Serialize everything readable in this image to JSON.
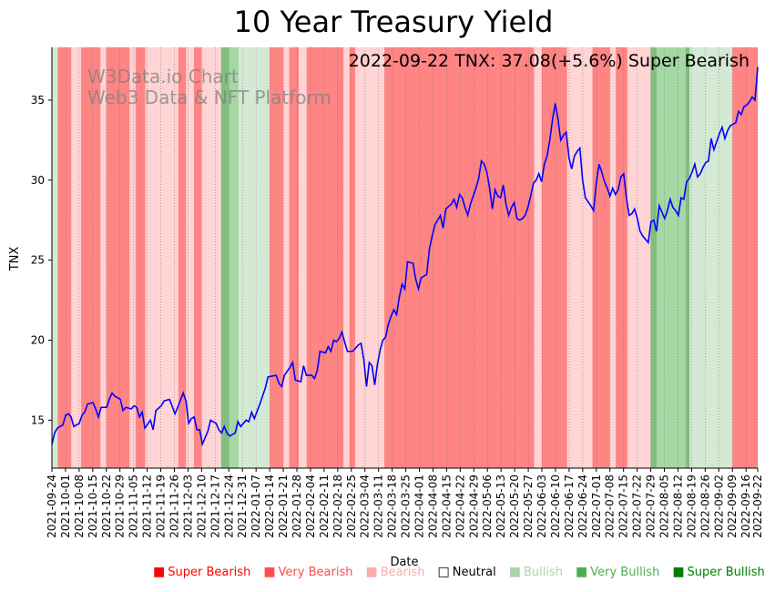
{
  "chart_data": {
    "type": "line",
    "title": "10 Year Treasury Yield",
    "annotation": "2022-09-22 TNX: 37.08(+5.6%) Super Bearish",
    "watermark_line1": "W3Data.io Chart",
    "watermark_line2": "Web3 Data & NFT Platform",
    "xlabel": "Date",
    "ylabel": "TNX",
    "ylim": [
      12.0,
      38.3
    ],
    "yticks": [
      15,
      20,
      25,
      30,
      35
    ],
    "ytick_labels": [
      "15",
      "20",
      "25",
      "30",
      "35"
    ],
    "xticks": [
      "2021-09-24",
      "2021-10-01",
      "2021-10-08",
      "2021-10-15",
      "2021-10-22",
      "2021-10-29",
      "2021-11-05",
      "2021-11-12",
      "2021-11-19",
      "2021-11-26",
      "2021-12-03",
      "2021-12-10",
      "2021-12-17",
      "2021-12-24",
      "2021-12-31",
      "2022-01-07",
      "2022-01-14",
      "2022-01-21",
      "2022-01-28",
      "2022-02-04",
      "2022-02-11",
      "2022-02-18",
      "2022-02-25",
      "2022-03-04",
      "2022-03-11",
      "2022-03-18",
      "2022-03-25",
      "2022-04-01",
      "2022-04-08",
      "2022-04-15",
      "2022-04-22",
      "2022-04-29",
      "2022-05-06",
      "2022-05-13",
      "2022-05-20",
      "2022-05-27",
      "2022-06-03",
      "2022-06-10",
      "2022-06-17",
      "2022-06-24",
      "2022-07-01",
      "2022-07-08",
      "2022-07-15",
      "2022-07-22",
      "2022-07-29",
      "2022-08-05",
      "2022-08-12",
      "2022-08-19",
      "2022-08-26",
      "2022-09-02",
      "2022-09-09",
      "2022-09-16",
      "2022-09-22"
    ],
    "line_color": "#0000ff",
    "x_days_total": 363,
    "series": [
      {
        "name": "TNX",
        "points": [
          [
            0,
            13.5
          ],
          [
            1,
            14.2
          ],
          [
            2,
            14.5
          ],
          [
            4,
            14.7
          ],
          [
            5,
            15.3
          ],
          [
            6,
            15.4
          ],
          [
            7,
            15.2
          ],
          [
            8,
            14.6
          ],
          [
            10,
            14.8
          ],
          [
            11,
            15.3
          ],
          [
            12,
            15.5
          ],
          [
            13,
            16.0
          ],
          [
            15,
            16.1
          ],
          [
            16,
            15.7
          ],
          [
            17,
            15.2
          ],
          [
            18,
            15.8
          ],
          [
            20,
            15.8
          ],
          [
            21,
            16.3
          ],
          [
            22,
            16.7
          ],
          [
            23,
            16.5
          ],
          [
            25,
            16.3
          ],
          [
            26,
            15.6
          ],
          [
            27,
            15.8
          ],
          [
            29,
            15.7
          ],
          [
            30,
            15.9
          ],
          [
            31,
            15.8
          ],
          [
            32,
            15.2
          ],
          [
            33,
            15.5
          ],
          [
            34,
            14.5
          ],
          [
            36,
            15.0
          ],
          [
            37,
            14.4
          ],
          [
            38,
            15.6
          ],
          [
            40,
            15.9
          ],
          [
            41,
            16.2
          ],
          [
            43,
            16.3
          ],
          [
            45,
            15.4
          ],
          [
            46,
            15.8
          ],
          [
            48,
            16.7
          ],
          [
            49,
            16.2
          ],
          [
            50,
            14.8
          ],
          [
            51,
            15.1
          ],
          [
            52,
            15.2
          ],
          [
            53,
            14.4
          ],
          [
            54,
            14.4
          ],
          [
            55,
            13.5
          ],
          [
            57,
            14.3
          ],
          [
            58,
            15.0
          ],
          [
            60,
            14.8
          ],
          [
            61,
            14.4
          ],
          [
            62,
            14.2
          ],
          [
            63,
            14.6
          ],
          [
            64,
            14.2
          ],
          [
            65,
            14.0
          ],
          [
            67,
            14.2
          ],
          [
            68,
            14.9
          ],
          [
            69,
            14.6
          ],
          [
            70,
            14.8
          ],
          [
            71,
            15.0
          ],
          [
            72,
            14.9
          ],
          [
            73,
            15.5
          ],
          [
            74,
            15.1
          ],
          [
            76,
            16.0
          ],
          [
            78,
            17.0
          ],
          [
            79,
            17.7
          ],
          [
            82,
            17.8
          ],
          [
            83,
            17.3
          ],
          [
            84,
            17.1
          ],
          [
            85,
            17.8
          ],
          [
            87,
            18.3
          ],
          [
            88,
            18.6
          ],
          [
            89,
            17.5
          ],
          [
            91,
            17.4
          ],
          [
            92,
            18.4
          ],
          [
            93,
            17.8
          ],
          [
            95,
            17.8
          ],
          [
            96,
            17.6
          ],
          [
            97,
            18.1
          ],
          [
            98,
            19.3
          ],
          [
            100,
            19.2
          ],
          [
            101,
            19.6
          ],
          [
            102,
            19.3
          ],
          [
            103,
            20.0
          ],
          [
            104,
            19.9
          ],
          [
            105,
            20.1
          ],
          [
            106,
            20.5
          ],
          [
            107,
            19.9
          ],
          [
            108,
            19.3
          ],
          [
            110,
            19.3
          ],
          [
            111,
            19.5
          ],
          [
            112,
            19.7
          ],
          [
            113,
            19.8
          ],
          [
            114,
            18.8
          ],
          [
            115,
            17.1
          ],
          [
            116,
            18.6
          ],
          [
            117,
            18.4
          ],
          [
            118,
            17.2
          ],
          [
            119,
            18.5
          ],
          [
            120,
            19.4
          ],
          [
            121,
            20.0
          ],
          [
            122,
            20.2
          ],
          [
            123,
            21.0
          ],
          [
            124,
            21.5
          ],
          [
            125,
            21.9
          ],
          [
            126,
            21.6
          ],
          [
            127,
            22.7
          ],
          [
            128,
            23.5
          ],
          [
            129,
            23.2
          ],
          [
            130,
            24.9
          ],
          [
            132,
            24.8
          ],
          [
            133,
            23.8
          ],
          [
            134,
            23.2
          ],
          [
            135,
            23.9
          ],
          [
            137,
            24.1
          ],
          [
            138,
            25.7
          ],
          [
            139,
            26.5
          ],
          [
            140,
            27.2
          ],
          [
            141,
            27.5
          ],
          [
            142,
            27.8
          ],
          [
            143,
            27.0
          ],
          [
            144,
            28.2
          ],
          [
            146,
            28.5
          ],
          [
            147,
            28.8
          ],
          [
            148,
            28.3
          ],
          [
            149,
            29.1
          ],
          [
            150,
            28.9
          ],
          [
            151,
            28.3
          ],
          [
            152,
            27.8
          ],
          [
            153,
            28.5
          ],
          [
            155,
            29.5
          ],
          [
            156,
            30.1
          ],
          [
            157,
            31.2
          ],
          [
            158,
            31.0
          ],
          [
            159,
            30.5
          ],
          [
            160,
            29.5
          ],
          [
            161,
            28.2
          ],
          [
            162,
            29.4
          ],
          [
            163,
            29.0
          ],
          [
            164,
            28.9
          ],
          [
            165,
            29.7
          ],
          [
            166,
            28.5
          ],
          [
            167,
            27.8
          ],
          [
            168,
            28.3
          ],
          [
            169,
            28.6
          ],
          [
            170,
            27.6
          ],
          [
            171,
            27.5
          ],
          [
            172,
            27.6
          ],
          [
            173,
            27.8
          ],
          [
            174,
            28.3
          ],
          [
            175,
            29.0
          ],
          [
            176,
            29.8
          ],
          [
            177,
            30.0
          ],
          [
            178,
            30.4
          ],
          [
            179,
            29.9
          ],
          [
            180,
            31.0
          ],
          [
            181,
            31.5
          ],
          [
            182,
            32.5
          ],
          [
            183,
            33.8
          ],
          [
            184,
            34.8
          ],
          [
            185,
            33.8
          ],
          [
            186,
            32.5
          ],
          [
            187,
            32.8
          ],
          [
            188,
            33.0
          ],
          [
            189,
            31.4
          ],
          [
            190,
            30.7
          ],
          [
            191,
            31.5
          ],
          [
            192,
            31.8
          ],
          [
            193,
            32.0
          ],
          [
            194,
            30.0
          ],
          [
            195,
            28.9
          ],
          [
            197,
            28.4
          ],
          [
            198,
            28.1
          ],
          [
            199,
            29.8
          ],
          [
            200,
            31.0
          ],
          [
            201,
            30.5
          ],
          [
            202,
            29.9
          ],
          [
            203,
            29.5
          ],
          [
            204,
            29.0
          ],
          [
            205,
            29.5
          ],
          [
            206,
            29.1
          ],
          [
            207,
            29.4
          ],
          [
            208,
            30.2
          ],
          [
            209,
            30.4
          ],
          [
            210,
            28.9
          ],
          [
            211,
            27.8
          ],
          [
            212,
            27.9
          ],
          [
            213,
            28.2
          ],
          [
            214,
            27.6
          ],
          [
            215,
            26.8
          ],
          [
            216,
            26.5
          ],
          [
            217,
            26.3
          ],
          [
            218,
            26.1
          ],
          [
            219,
            27.4
          ],
          [
            220,
            27.5
          ],
          [
            221,
            26.8
          ],
          [
            222,
            28.4
          ],
          [
            223,
            28.0
          ],
          [
            224,
            27.6
          ],
          [
            225,
            28.1
          ],
          [
            226,
            28.8
          ],
          [
            227,
            28.3
          ],
          [
            228,
            28.1
          ],
          [
            229,
            27.8
          ],
          [
            230,
            28.9
          ],
          [
            231,
            28.8
          ],
          [
            232,
            29.9
          ],
          [
            233,
            30.1
          ],
          [
            234,
            30.5
          ],
          [
            235,
            31.0
          ],
          [
            236,
            30.2
          ],
          [
            237,
            30.4
          ],
          [
            238,
            30.8
          ],
          [
            239,
            31.1
          ],
          [
            240,
            31.2
          ],
          [
            241,
            32.6
          ],
          [
            242,
            31.9
          ],
          [
            243,
            32.4
          ],
          [
            244,
            32.9
          ],
          [
            245,
            33.3
          ],
          [
            246,
            32.6
          ],
          [
            247,
            33.1
          ],
          [
            248,
            33.4
          ],
          [
            249,
            33.5
          ],
          [
            250,
            33.6
          ],
          [
            251,
            34.3
          ],
          [
            252,
            34.1
          ],
          [
            253,
            34.6
          ],
          [
            254,
            34.7
          ],
          [
            255,
            34.9
          ],
          [
            256,
            35.2
          ],
          [
            257,
            35.0
          ],
          [
            258,
            37.08
          ]
        ]
      }
    ],
    "signal_legend": [
      {
        "label": "Super Bearish",
        "color": "#ff0000"
      },
      {
        "label": "Very Bearish",
        "color": "#ff4d4d"
      },
      {
        "label": "Bearish",
        "color": "#ffaaaa"
      },
      {
        "label": "Neutral",
        "color": "#000000"
      },
      {
        "label": "Bullish",
        "color": "#aad4aa"
      },
      {
        "label": "Very Bullish",
        "color": "#4caf4c"
      },
      {
        "label": "Super Bullish",
        "color": "#008000"
      }
    ],
    "signal_periods": [
      {
        "start": 0,
        "end": 3,
        "signal": "Bullish"
      },
      {
        "start": 3,
        "end": 10,
        "signal": "Super Bearish"
      },
      {
        "start": 10,
        "end": 15,
        "signal": "Bearish"
      },
      {
        "start": 15,
        "end": 25,
        "signal": "Super Bearish"
      },
      {
        "start": 25,
        "end": 28,
        "signal": "Bearish"
      },
      {
        "start": 28,
        "end": 40,
        "signal": "Super Bearish"
      },
      {
        "start": 40,
        "end": 43,
        "signal": "Bearish"
      },
      {
        "start": 43,
        "end": 48,
        "signal": "Super Bearish"
      },
      {
        "start": 48,
        "end": 65,
        "signal": "Bearish"
      },
      {
        "start": 65,
        "end": 69,
        "signal": "Super Bearish"
      },
      {
        "start": 69,
        "end": 73,
        "signal": "Bearish"
      },
      {
        "start": 73,
        "end": 77,
        "signal": "Super Bearish"
      },
      {
        "start": 77,
        "end": 87,
        "signal": "Bearish"
      },
      {
        "start": 87,
        "end": 91,
        "signal": "Super Bullish"
      },
      {
        "start": 91,
        "end": 96,
        "signal": "Very Bullish"
      },
      {
        "start": 96,
        "end": 112,
        "signal": "Bullish"
      },
      {
        "start": 112,
        "end": 119,
        "signal": "Super Bearish"
      },
      {
        "start": 119,
        "end": 122,
        "signal": "Bearish"
      },
      {
        "start": 122,
        "end": 127,
        "signal": "Super Bearish"
      },
      {
        "start": 127,
        "end": 131,
        "signal": "Bearish"
      },
      {
        "start": 131,
        "end": 150,
        "signal": "Super Bearish"
      },
      {
        "start": 150,
        "end": 153,
        "signal": "Bearish"
      },
      {
        "start": 153,
        "end": 156,
        "signal": "Super Bearish"
      },
      {
        "start": 156,
        "end": 171,
        "signal": "Bearish"
      },
      {
        "start": 171,
        "end": 248,
        "signal": "Super Bearish"
      },
      {
        "start": 248,
        "end": 252,
        "signal": "Bearish"
      },
      {
        "start": 252,
        "end": 265,
        "signal": "Super Bearish"
      },
      {
        "start": 265,
        "end": 278,
        "signal": "Bearish"
      },
      {
        "start": 278,
        "end": 287,
        "signal": "Super Bearish"
      },
      {
        "start": 287,
        "end": 290,
        "signal": "Bearish"
      },
      {
        "start": 290,
        "end": 296,
        "signal": "Super Bearish"
      },
      {
        "start": 296,
        "end": 308,
        "signal": "Bearish"
      },
      {
        "start": 308,
        "end": 311,
        "signal": "Super Bullish"
      },
      {
        "start": 311,
        "end": 326,
        "signal": "Very Bullish"
      },
      {
        "start": 326,
        "end": 328,
        "signal": "Super Bullish"
      },
      {
        "start": 328,
        "end": 350,
        "signal": "Bullish"
      },
      {
        "start": 350,
        "end": 363,
        "signal": "Super Bearish"
      }
    ]
  }
}
